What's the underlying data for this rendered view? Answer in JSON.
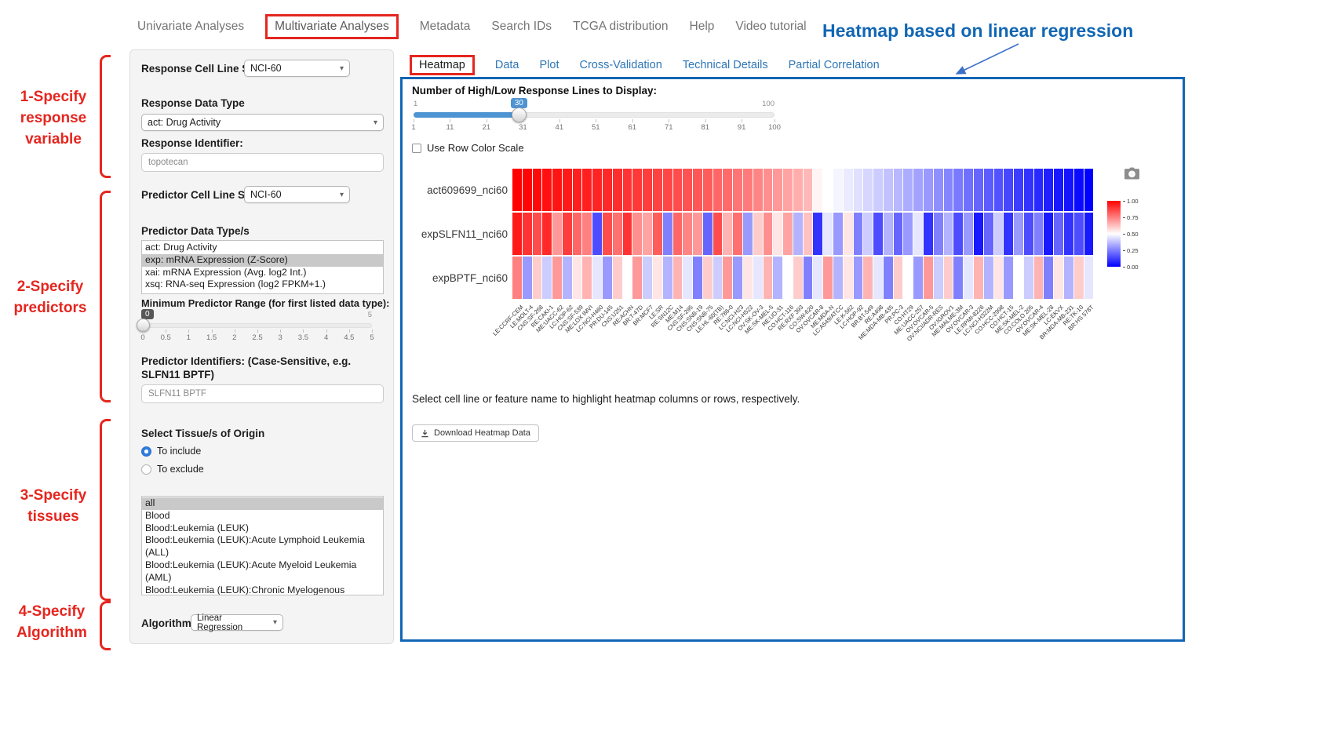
{
  "nav": {
    "items": [
      {
        "label": "Univariate Analyses",
        "highlighted": false
      },
      {
        "label": "Multivariate Analyses",
        "highlighted": true
      },
      {
        "label": "Metadata",
        "highlighted": false
      },
      {
        "label": "Search IDs",
        "highlighted": false
      },
      {
        "label": "TCGA distribution",
        "highlighted": false
      },
      {
        "label": "Help",
        "highlighted": false
      },
      {
        "label": "Video tutorial",
        "highlighted": false
      }
    ]
  },
  "annotations": {
    "heading": "Heatmap based on linear regression",
    "steps": [
      {
        "lines": [
          "1-Specify",
          "response",
          "variable"
        ]
      },
      {
        "lines": [
          "2-Specify",
          "predictors"
        ]
      },
      {
        "lines": [
          "3-Specify",
          "tissues"
        ]
      },
      {
        "lines": [
          "4-Specify",
          "Algorithm"
        ]
      }
    ],
    "accent_red": "#e5261f",
    "accent_blue": "#1166b3"
  },
  "ui": {
    "chevron_glyph": "▾"
  },
  "form": {
    "response_cell_line_set": {
      "label": "Response Cell Line Set",
      "value": "NCI-60"
    },
    "response_data_type": {
      "label": "Response Data Type",
      "value": "act: Drug Activity"
    },
    "response_identifier": {
      "label": "Response Identifier:",
      "value": "topotecan"
    },
    "predictor_cell_line_set": {
      "label": "Predictor Cell Line Set",
      "value": "NCI-60"
    },
    "predictor_data_types": {
      "label": "Predictor Data Type/s",
      "options": [
        "act: Drug Activity",
        "exp: mRNA Expression (Z-Score)",
        "xai: mRNA Expression (Avg. log2 Int.)",
        "xsq: RNA-seq Expression (log2 FPKM+1.)"
      ],
      "selected": "exp: mRNA Expression (Z-Score)"
    },
    "min_predictor_range": {
      "label": "Minimum Predictor Range (for first listed data type):",
      "value": 0,
      "min": 0,
      "max": 5,
      "ticks": [
        "0",
        "0.5",
        "1",
        "1.5",
        "2",
        "2.5",
        "3",
        "3.5",
        "4",
        "4.5",
        "5"
      ]
    },
    "predictor_identifiers": {
      "label": "Predictor Identifiers: (Case-Sensitive, e.g. SLFN11 BPTF)",
      "value": "SLFN11 BPTF"
    },
    "tissue_origin": {
      "label": "Select Tissue/s of Origin",
      "radios": [
        {
          "label": "To include",
          "selected": true
        },
        {
          "label": "To exclude",
          "selected": false
        }
      ],
      "options": [
        "all",
        "Blood",
        "Blood:Leukemia (LEUK)",
        "Blood:Leukemia (LEUK):Acute Lymphoid Leukemia (ALL)",
        "Blood:Leukemia (LEUK):Acute Myeloid Leukemia (AML)",
        "Blood:Leukemia (LEUK):Chronic Myelogenous Leukemia (CML)"
      ],
      "selected": "all"
    },
    "algorithm": {
      "label": "Algorithm",
      "value": "Linear Regression"
    }
  },
  "tabs": [
    {
      "label": "Heatmap",
      "active": true
    },
    {
      "label": "Data",
      "active": false
    },
    {
      "label": "Plot",
      "active": false
    },
    {
      "label": "Cross-Validation",
      "active": false
    },
    {
      "label": "Technical Details",
      "active": false
    },
    {
      "label": "Partial Correlation",
      "active": false
    }
  ],
  "main": {
    "slider": {
      "label": "Number of High/Low Response Lines to Display:",
      "value": 30,
      "min": 1,
      "max": 100,
      "ticks": [
        "1",
        "11",
        "21",
        "31",
        "41",
        "51",
        "61",
        "71",
        "81",
        "91",
        "100"
      ]
    },
    "row_color_scale": {
      "label": "Use Row Color Scale",
      "checked": false
    },
    "hint": "Select cell line or feature name to highlight heatmap columns or rows, respectively.",
    "download_button": "Download Heatmap Data",
    "icons": {
      "camera": "camera-icon",
      "download": "download-icon"
    }
  },
  "chart_data": {
    "type": "heatmap",
    "title": "Heatmap based on linear regression",
    "rows": [
      "act609699_nci60",
      "expSLFN11_nci60",
      "expBPTF_nci60"
    ],
    "columns": [
      "LE:CCRF-CEM",
      "LE:MOLT-4",
      "CNS:SF-268",
      "RE:CAKI-1",
      "ME:UACC-62",
      "LC:HOP-62",
      "CNS:SF-539",
      "ME:LOX IMVI",
      "LC:NCI-H460",
      "PR:DU-145",
      "CNS:U251",
      "RE:ACHN",
      "BR:T-47D",
      "BR:MCF7",
      "LE:SR",
      "RE:SN12C",
      "ME:M14",
      "CNS:SF-295",
      "CNS:SNB-19",
      "CNS:SNB-75",
      "LE:HL-60(TB)",
      "RE:786-0",
      "LC:NCI-H23",
      "LC:NCI-H522",
      "OV:SK-OV-3",
      "ME:SK-MEL-5",
      "RE:UO-31",
      "CO:HCT-116",
      "RE:RXF 393",
      "CO:SW-620",
      "OV:OVCAR-8",
      "ME:MDA-N",
      "LC:A549/ATCC",
      "LE:K-562",
      "LC:HOP-92",
      "BR:BT-549",
      "RE:A498",
      "ME:MDA-MB-435",
      "PR:PC-3",
      "CO:HT29",
      "ME:UACC-257",
      "OV:OVCAR-5",
      "OV:NCI/ADR-RES",
      "OV:IGROV1",
      "ME:MALME-3M",
      "OV:OVCAR-3",
      "LE:RPMI-8226",
      "LC:NCI-H322M",
      "CO:HCC-2998",
      "CO:HCT-15",
      "ME:SK-MEL-2",
      "CO:COLO 205",
      "OV:OVCAR-4",
      "ME:SK-MEL-28",
      "LC:EKVX",
      "BR:MDA-MB-231",
      "RE:TK-10",
      "BR:HS 578T"
    ],
    "series": [
      {
        "name": "act609699_nci60",
        "values": [
          1.0,
          0.99,
          0.98,
          0.97,
          0.96,
          0.95,
          0.94,
          0.94,
          0.93,
          0.92,
          0.91,
          0.9,
          0.89,
          0.88,
          0.87,
          0.86,
          0.85,
          0.84,
          0.83,
          0.82,
          0.8,
          0.79,
          0.77,
          0.76,
          0.74,
          0.72,
          0.7,
          0.68,
          0.66,
          0.64,
          0.52,
          0.5,
          0.48,
          0.46,
          0.44,
          0.42,
          0.4,
          0.38,
          0.36,
          0.34,
          0.32,
          0.3,
          0.28,
          0.26,
          0.24,
          0.22,
          0.2,
          0.18,
          0.16,
          0.14,
          0.12,
          0.1,
          0.08,
          0.06,
          0.05,
          0.04,
          0.02,
          0.0
        ]
      },
      {
        "name": "expSLFN11_nci60",
        "values": [
          0.95,
          0.9,
          0.85,
          0.92,
          0.7,
          0.88,
          0.8,
          0.75,
          0.15,
          0.85,
          0.78,
          0.9,
          0.72,
          0.68,
          0.82,
          0.25,
          0.8,
          0.74,
          0.7,
          0.2,
          0.85,
          0.65,
          0.78,
          0.3,
          0.6,
          0.72,
          0.55,
          0.68,
          0.35,
          0.62,
          0.1,
          0.45,
          0.3,
          0.55,
          0.25,
          0.4,
          0.15,
          0.35,
          0.2,
          0.3,
          0.45,
          0.1,
          0.25,
          0.35,
          0.15,
          0.3,
          0.05,
          0.2,
          0.4,
          0.1,
          0.3,
          0.15,
          0.25,
          0.05,
          0.2,
          0.1,
          0.15,
          0.05
        ]
      },
      {
        "name": "expBPTF_nci60",
        "values": [
          0.75,
          0.3,
          0.6,
          0.4,
          0.7,
          0.35,
          0.55,
          0.65,
          0.45,
          0.3,
          0.6,
          0.5,
          0.7,
          0.4,
          0.55,
          0.35,
          0.65,
          0.45,
          0.25,
          0.6,
          0.4,
          0.7,
          0.3,
          0.55,
          0.45,
          0.65,
          0.35,
          0.5,
          0.6,
          0.25,
          0.45,
          0.7,
          0.35,
          0.55,
          0.3,
          0.65,
          0.45,
          0.25,
          0.6,
          0.5,
          0.3,
          0.7,
          0.4,
          0.6,
          0.25,
          0.45,
          0.65,
          0.35,
          0.55,
          0.3,
          0.5,
          0.4,
          0.65,
          0.25,
          0.55,
          0.35,
          0.6,
          0.45
        ]
      }
    ],
    "colorscale": {
      "min": 0,
      "max": 1,
      "low_color": "#0000ff",
      "mid_color": "#ffffff",
      "high_color": "#ff0000",
      "legend_ticks": [
        "1.00",
        "0.75",
        "0.50",
        "0.25",
        "0.00"
      ]
    },
    "legend_position": "right",
    "grid": false
  }
}
